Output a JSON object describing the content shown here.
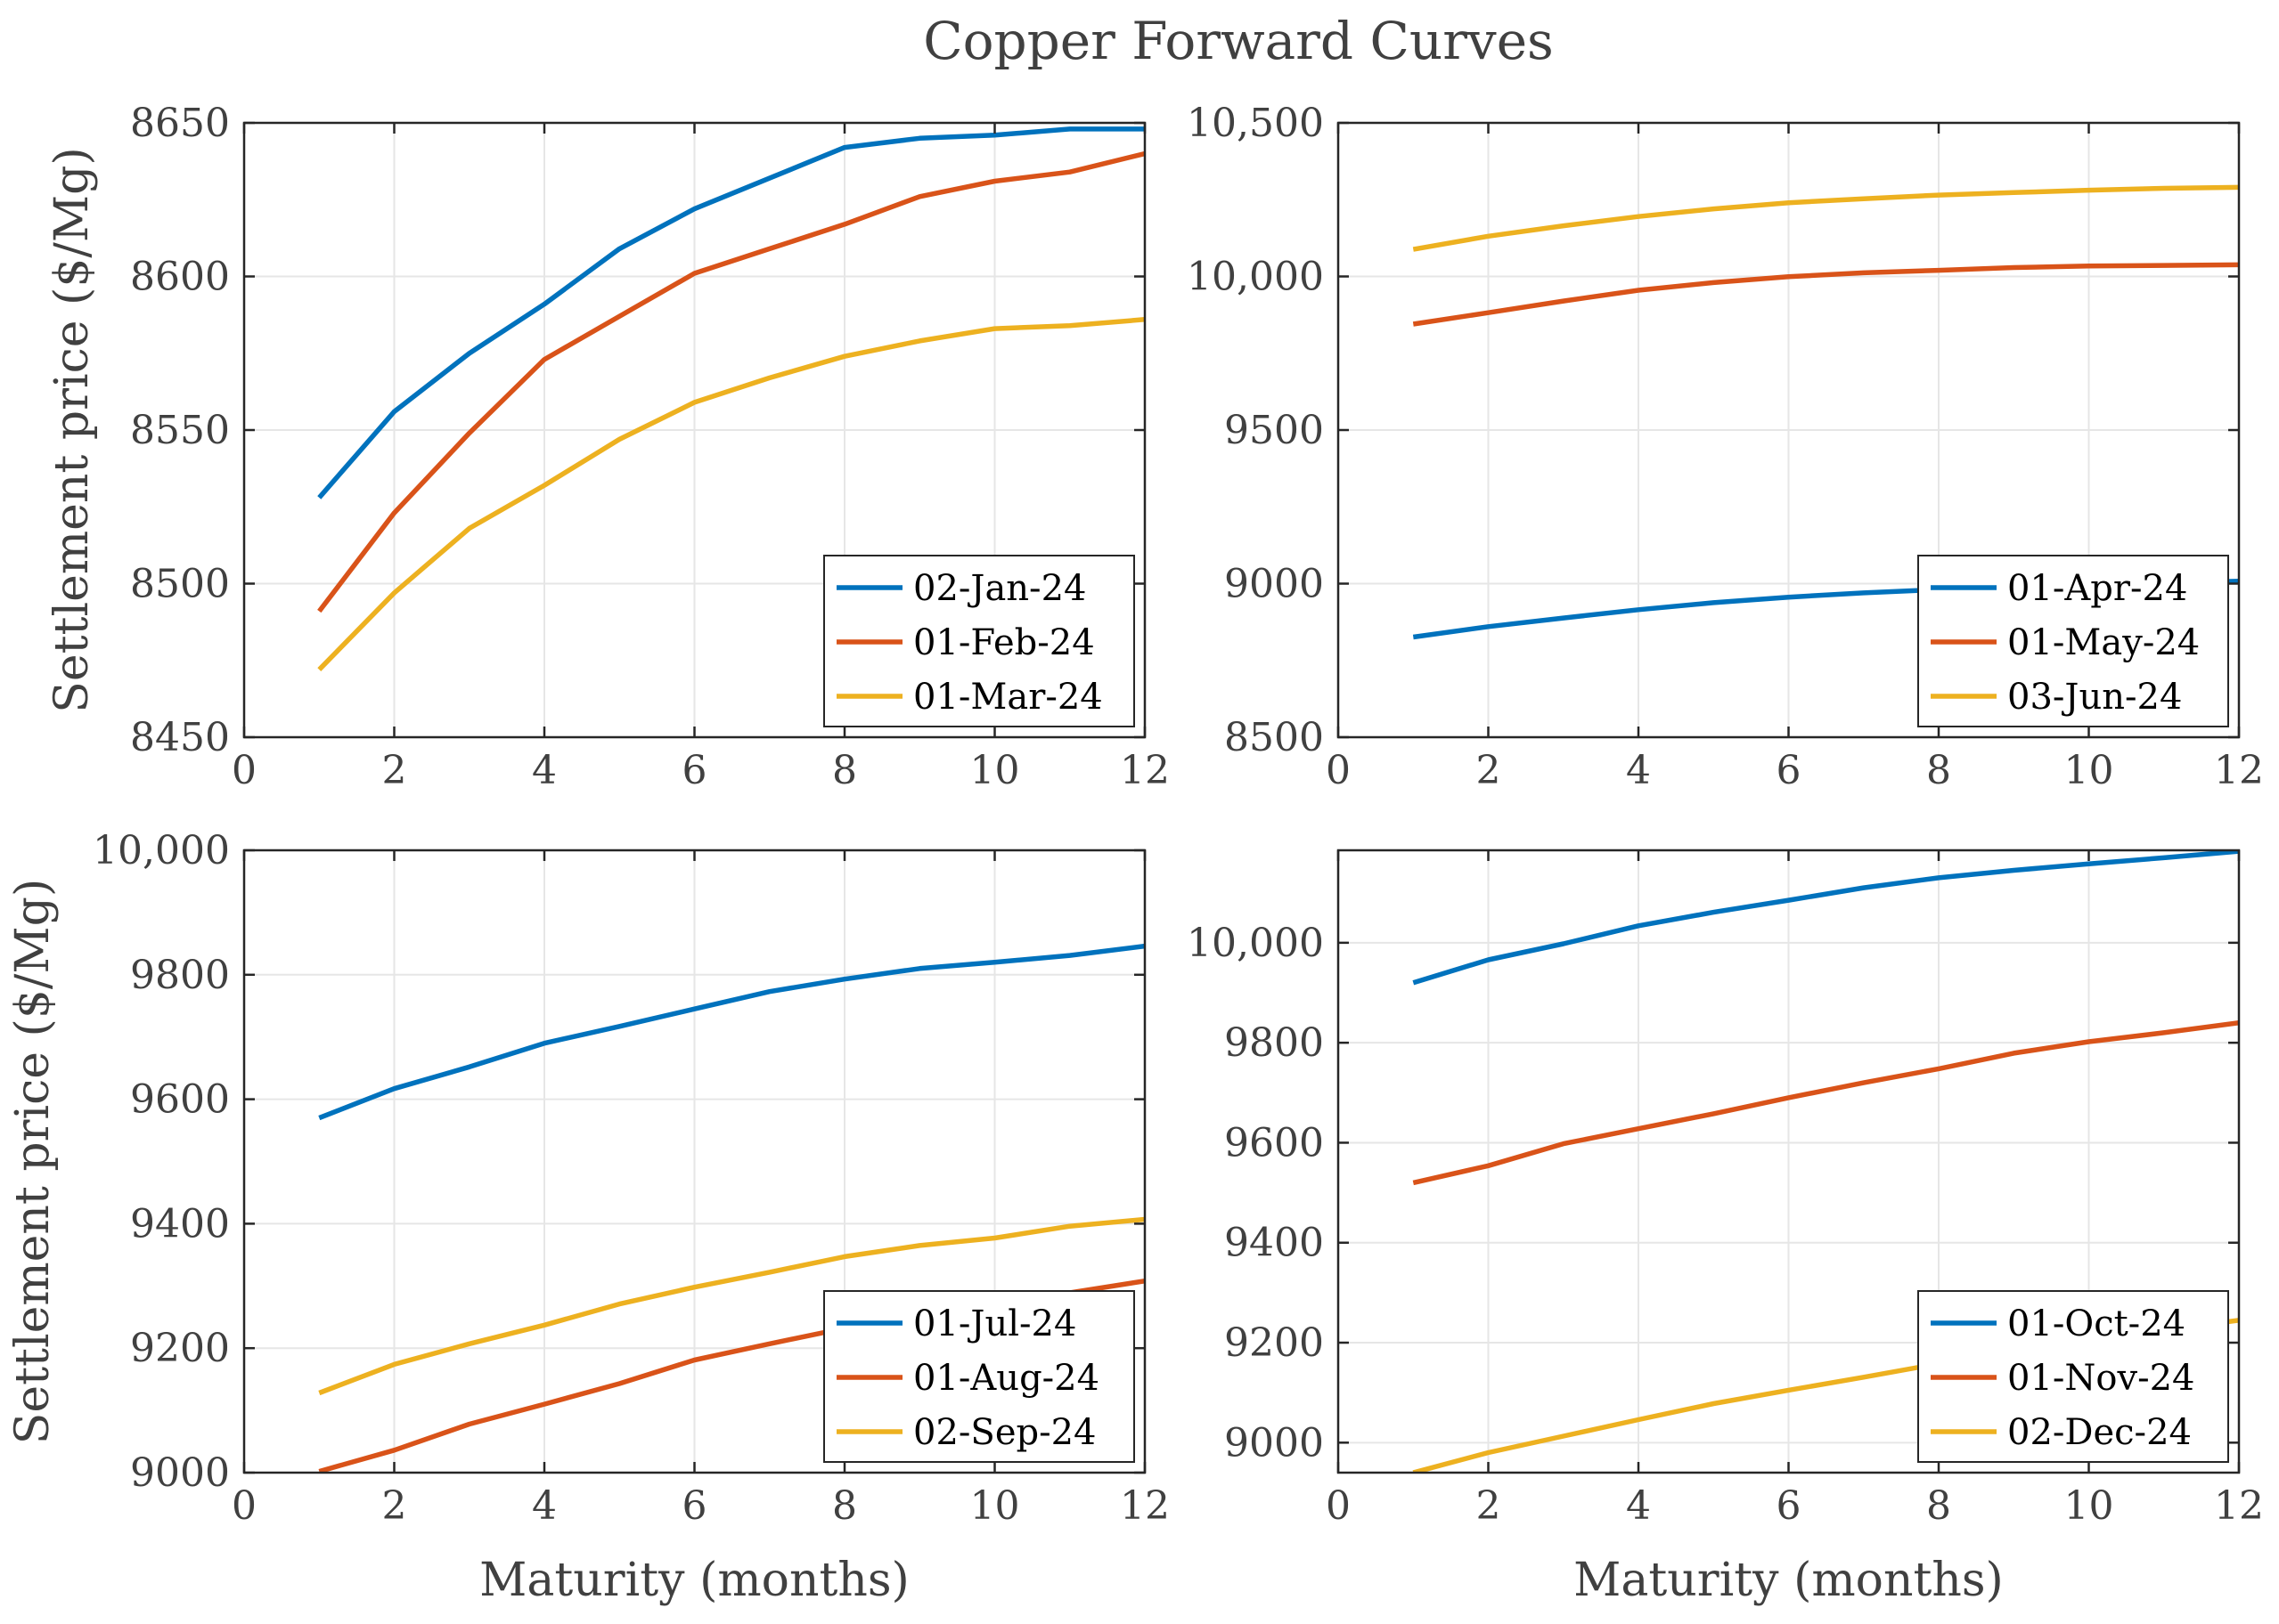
{
  "figure": {
    "title": "Copper Forward Curves"
  },
  "chart_data": [
    {
      "type": "line",
      "xlabel": "",
      "ylabel": "Settlement price ($/Mg)",
      "xlim": [
        0,
        12
      ],
      "ylim": [
        8450,
        8650
      ],
      "xticks": [
        0,
        2,
        4,
        6,
        8,
        10,
        12
      ],
      "yticks": [
        8450,
        8500,
        8550,
        8600,
        8650
      ],
      "ytick_labels": [
        "8450",
        "8500",
        "8550",
        "8600",
        "8650"
      ],
      "grid": true,
      "legend_position": "bottom-right",
      "x": [
        1,
        2,
        3,
        4,
        5,
        6,
        7,
        8,
        9,
        10,
        11,
        12
      ],
      "series": [
        {
          "name": "02-Jan-24",
          "color": "#0072BD",
          "values": [
            8528,
            8556,
            8575,
            8591,
            8609,
            8622,
            8632,
            8642,
            8645,
            8646,
            8648,
            8648
          ]
        },
        {
          "name": "01-Feb-24",
          "color": "#D95319",
          "values": [
            8491,
            8523,
            8549,
            8573,
            8587,
            8601,
            8609,
            8617,
            8626,
            8631,
            8634,
            8640
          ]
        },
        {
          "name": "01-Mar-24",
          "color": "#EDB120",
          "values": [
            8472,
            8497,
            8518,
            8532,
            8547,
            8559,
            8567,
            8574,
            8579,
            8583,
            8584,
            8586
          ]
        }
      ]
    },
    {
      "type": "line",
      "xlabel": "",
      "ylabel": "",
      "xlim": [
        0,
        12
      ],
      "ylim": [
        8500,
        10500
      ],
      "xticks": [
        0,
        2,
        4,
        6,
        8,
        10,
        12
      ],
      "yticks": [
        8500,
        9000,
        9500,
        10000,
        10500
      ],
      "ytick_labels": [
        "8500",
        "9000",
        "9500",
        "10,000",
        "10,500"
      ],
      "grid": true,
      "legend_position": "bottom-right",
      "x": [
        1,
        2,
        3,
        4,
        5,
        6,
        7,
        8,
        9,
        10,
        11,
        12
      ],
      "series": [
        {
          "name": "01-Apr-24",
          "color": "#0072BD",
          "values": [
            8826,
            8860,
            8888,
            8915,
            8938,
            8956,
            8970,
            8981,
            8990,
            8996,
            9002,
            9008
          ]
        },
        {
          "name": "01-May-24",
          "color": "#D95319",
          "values": [
            9845,
            9882,
            9920,
            9955,
            9980,
            9999,
            10012,
            10020,
            10029,
            10034,
            10036,
            10038
          ]
        },
        {
          "name": "03-Jun-24",
          "color": "#EDB120",
          "values": [
            10088,
            10131,
            10165,
            10195,
            10220,
            10240,
            10253,
            10265,
            10273,
            10281,
            10287,
            10290
          ]
        }
      ]
    },
    {
      "type": "line",
      "xlabel": "Maturity (months)",
      "ylabel": "Settlement price ($/Mg)",
      "xlim": [
        0,
        12
      ],
      "ylim": [
        9000,
        10000
      ],
      "xticks": [
        0,
        2,
        4,
        6,
        8,
        10,
        12
      ],
      "yticks": [
        9000,
        9200,
        9400,
        9600,
        9800,
        10000
      ],
      "ytick_labels": [
        "9000",
        "9200",
        "9400",
        "9600",
        "9800",
        "10,000"
      ],
      "grid": true,
      "legend_position": "bottom-right",
      "x": [
        1,
        2,
        3,
        4,
        5,
        6,
        7,
        8,
        9,
        10,
        11,
        12
      ],
      "series": [
        {
          "name": "01-Jul-24",
          "color": "#0072BD",
          "values": [
            9570,
            9617,
            9652,
            9690,
            9717,
            9745,
            9773,
            9793,
            9810,
            9820,
            9831,
            9846
          ]
        },
        {
          "name": "01-Aug-24",
          "color": "#D95319",
          "values": [
            9002,
            9036,
            9078,
            9110,
            9143,
            9181,
            9207,
            9232,
            9255,
            9271,
            9289,
            9308
          ]
        },
        {
          "name": "02-Sep-24",
          "color": "#EDB120",
          "values": [
            9128,
            9174,
            9207,
            9237,
            9271,
            9298,
            9322,
            9347,
            9365,
            9377,
            9396,
            9407
          ]
        }
      ]
    },
    {
      "type": "line",
      "xlabel": "Maturity (months)",
      "ylabel": "",
      "xlim": [
        0,
        12
      ],
      "ylim": [
        8940,
        10185
      ],
      "xticks": [
        0,
        2,
        4,
        6,
        8,
        10,
        12
      ],
      "yticks": [
        9000,
        9200,
        9400,
        9600,
        9800,
        10000
      ],
      "ytick_labels": [
        "9000",
        "9200",
        "9400",
        "9600",
        "9800",
        "10,000"
      ],
      "grid": true,
      "legend_position": "bottom-right",
      "x": [
        1,
        2,
        3,
        4,
        5,
        6,
        7,
        8,
        9,
        10,
        11,
        12
      ],
      "series": [
        {
          "name": "01-Oct-24",
          "color": "#0072BD",
          "values": [
            9920,
            9966,
            9998,
            10034,
            10061,
            10085,
            10110,
            10130,
            10145,
            10158,
            10170,
            10183
          ]
        },
        {
          "name": "01-Nov-24",
          "color": "#D95319",
          "values": [
            9520,
            9554,
            9598,
            9628,
            9658,
            9690,
            9720,
            9748,
            9779,
            9802,
            9820,
            9840
          ]
        },
        {
          "name": "02-Dec-24",
          "color": "#EDB120",
          "values": [
            8940,
            8980,
            9013,
            9046,
            9078,
            9105,
            9131,
            9158,
            9180,
            9203,
            9225,
            9245
          ]
        }
      ]
    }
  ]
}
